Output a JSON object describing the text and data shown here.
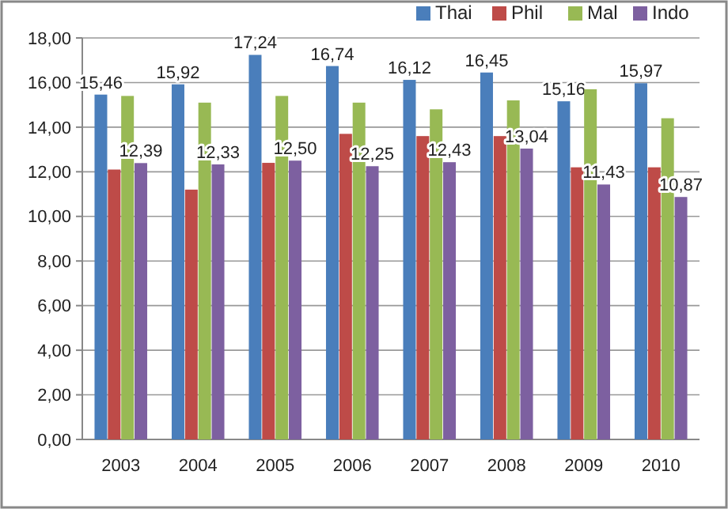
{
  "chart_data": {
    "type": "bar",
    "categories": [
      "2003",
      "2004",
      "2005",
      "2006",
      "2007",
      "2008",
      "2009",
      "2010"
    ],
    "series": [
      {
        "name": "Thai",
        "color": "#4a7ebb",
        "values": [
          15.46,
          15.92,
          17.24,
          16.74,
          16.12,
          16.45,
          15.16,
          15.97
        ],
        "value_labels": [
          "15,46",
          "15,92",
          "17,24",
          "16,74",
          "16,12",
          "16,45",
          "15,16",
          "15,97"
        ]
      },
      {
        "name": "Phil",
        "color": "#be4b48",
        "values": [
          12.1,
          11.2,
          12.4,
          13.7,
          13.6,
          13.6,
          12.2,
          12.2
        ]
      },
      {
        "name": "Mal",
        "color": "#98b954",
        "values": [
          15.4,
          15.1,
          15.4,
          15.1,
          14.8,
          15.2,
          15.7,
          14.4
        ]
      },
      {
        "name": "Indo",
        "color": "#7d60a0",
        "values": [
          12.39,
          12.33,
          12.5,
          12.25,
          12.43,
          13.04,
          11.43,
          10.87
        ],
        "value_labels": [
          "12,39",
          "12,33",
          "12,50",
          "12,25",
          "12,43",
          "13,04",
          "11,43",
          "10,87"
        ]
      }
    ],
    "ylim": [
      0,
      18
    ],
    "yticks": [
      {
        "value": 0,
        "label": "0,00"
      },
      {
        "value": 2,
        "label": "2,00"
      },
      {
        "value": 4,
        "label": "4,00"
      },
      {
        "value": 6,
        "label": "6,00"
      },
      {
        "value": 8,
        "label": "8,00"
      },
      {
        "value": 10,
        "label": "10,00"
      },
      {
        "value": 12,
        "label": "12,00"
      },
      {
        "value": 14,
        "label": "14,00"
      },
      {
        "value": 16,
        "label": "16,00"
      },
      {
        "value": 18,
        "label": "18,00"
      }
    ],
    "grid": "y",
    "legend": "top right"
  }
}
